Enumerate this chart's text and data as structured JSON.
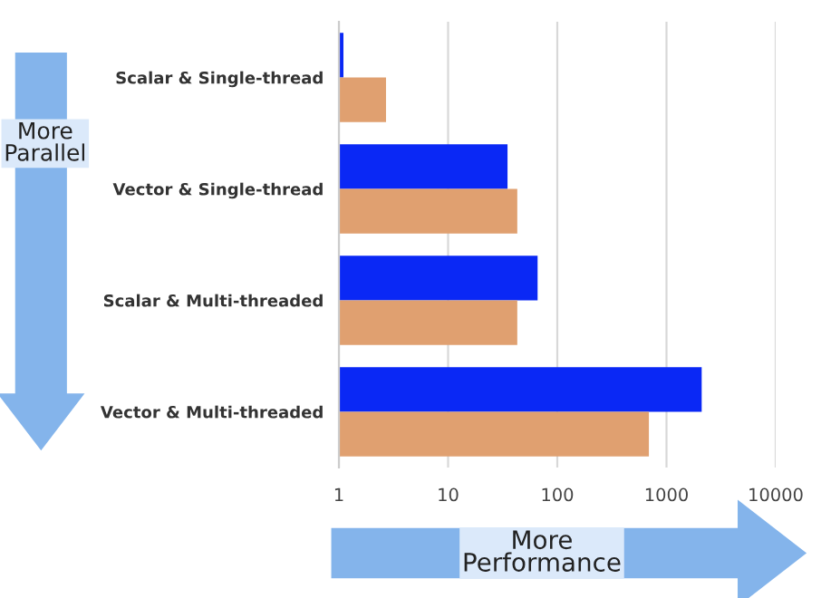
{
  "chart_data": {
    "type": "bar",
    "orientation": "horizontal",
    "log": "x",
    "categories": [
      "Scalar & Single-thread",
      "Vector & Single-thread",
      "Scalar & Multi-threaded",
      "Vector & Multi-threaded"
    ],
    "series": [
      {
        "color": "#0a28f5",
        "values": [
          1.1,
          35,
          66,
          2100
        ]
      },
      {
        "color": "#e0a070",
        "values": [
          2.7,
          43,
          43,
          690
        ]
      }
    ],
    "xlim": [
      1,
      10000
    ],
    "xticks": [
      1,
      10,
      100,
      1000,
      10000
    ],
    "grid": "x",
    "legend": false,
    "annotations": [
      "More\nParallel",
      "More\nPerformance"
    ]
  }
}
